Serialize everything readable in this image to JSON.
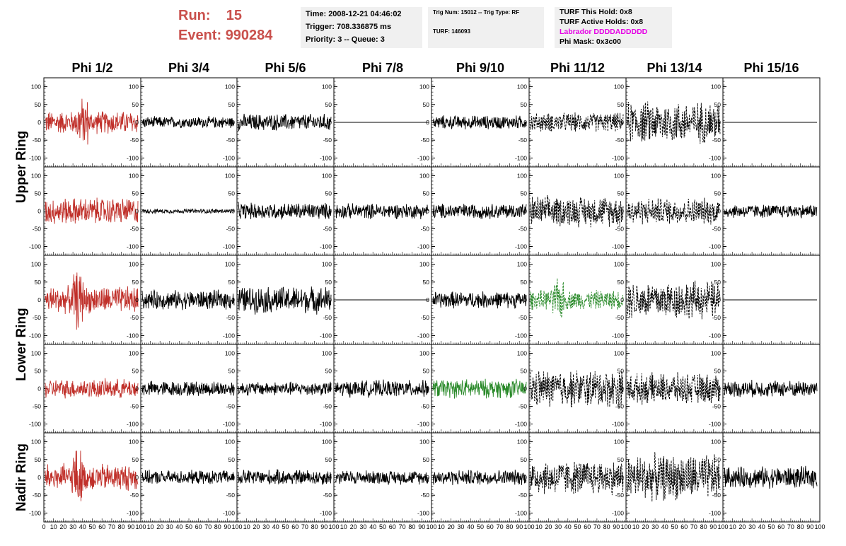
{
  "header": {
    "run_label": "Run:",
    "run_value": "15",
    "event_label": "Event:",
    "event_value": "990284",
    "time_line": "Time: 2008-12-21 04:46:02",
    "trigger_line": "Trigger: 708.336875 ms",
    "priority_line": "Priority: 3 -- Queue: 3",
    "trig_num_line": "Trig Num: 15012 -- Trig Type: RF",
    "turf_line": "TURF: 146093",
    "turf_hold_line": "TURF This Hold: 0x8",
    "turf_active_line": "TURF Active Holds: 0x8",
    "labrador_line": "Labrador DDDDADDDDD",
    "phi_mask_line": "Phi Mask: 0x3c00"
  },
  "chart_data": {
    "type": "line",
    "columns": [
      "Phi 1/2",
      "Phi 3/4",
      "Phi 5/6",
      "Phi 7/8",
      "Phi 9/10",
      "Phi 11/12",
      "Phi 13/14",
      "Phi 15/16"
    ],
    "rows": [
      "Upper Ring",
      "Lower Ring",
      "Nadir Ring"
    ],
    "y_ticks": [
      "100",
      "50",
      "0",
      "-50",
      "-100"
    ],
    "x_ticks": [
      "0",
      "10",
      "20",
      "30",
      "40",
      "50",
      "60",
      "70",
      "80",
      "90",
      "100"
    ],
    "xlim": [
      0,
      100
    ],
    "ylim": [
      -125,
      125
    ],
    "colors": {
      "red": "#c0302a",
      "green": "#2a8a2a",
      "black": "#000000"
    },
    "panels": [
      [
        {
          "amp": 30,
          "style": "red",
          "burst": 40
        },
        {
          "amp": 15,
          "style": "solid"
        },
        {
          "amp": 22,
          "style": "solid"
        },
        {
          "amp": 0,
          "style": "flat"
        },
        {
          "amp": 18,
          "style": "solid"
        },
        {
          "amp": 25,
          "style": "dashed"
        },
        {
          "amp": 55,
          "style": "dashed"
        },
        {
          "amp": 0,
          "style": "flat"
        }
      ],
      [
        {
          "amp": 35,
          "style": "red"
        },
        {
          "amp": 6,
          "style": "solid"
        },
        {
          "amp": 22,
          "style": "solid"
        },
        {
          "amp": 20,
          "style": "solid"
        },
        {
          "amp": 20,
          "style": "solid"
        },
        {
          "amp": 40,
          "style": "dashed"
        },
        {
          "amp": 35,
          "style": "dashed"
        },
        {
          "amp": 18,
          "style": "solid"
        }
      ],
      [
        {
          "amp": 35,
          "style": "red",
          "burst": 35
        },
        {
          "amp": 25,
          "style": "solid"
        },
        {
          "amp": 35,
          "style": "solid"
        },
        {
          "amp": 0,
          "style": "flat"
        },
        {
          "amp": 22,
          "style": "solid"
        },
        {
          "amp": 25,
          "style": "green-dashed",
          "burst": 30
        },
        {
          "amp": 50,
          "style": "dashed"
        },
        {
          "amp": 0,
          "style": "flat"
        }
      ],
      [
        {
          "amp": 25,
          "style": "red"
        },
        {
          "amp": 20,
          "style": "solid"
        },
        {
          "amp": 18,
          "style": "solid"
        },
        {
          "amp": 22,
          "style": "solid"
        },
        {
          "amp": 25,
          "style": "green"
        },
        {
          "amp": 50,
          "style": "dashed"
        },
        {
          "amp": 40,
          "style": "dashed"
        },
        {
          "amp": 22,
          "style": "solid"
        }
      ],
      [
        {
          "amp": 35,
          "style": "red",
          "burst": 35
        },
        {
          "amp": 18,
          "style": "solid"
        },
        {
          "amp": 20,
          "style": "solid"
        },
        {
          "amp": 18,
          "style": "solid"
        },
        {
          "amp": 20,
          "style": "solid"
        },
        {
          "amp": 45,
          "style": "dashed"
        },
        {
          "amp": 60,
          "style": "dashed"
        },
        {
          "amp": 28,
          "style": "solid"
        }
      ]
    ]
  }
}
